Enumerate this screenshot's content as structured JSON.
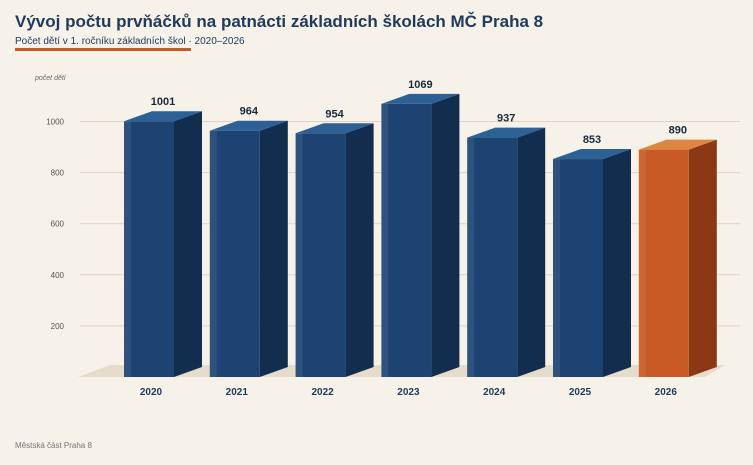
{
  "title": "Vývoj počtu prvňáčků na patnácti základních školách MČ Praha 8",
  "subtitle": "Počet dětí v 1. ročníku základních škol · 2020–2026",
  "footer": "Městská část Praha 8",
  "colors": {
    "bar_front": "#1d4373",
    "bar_top": "#2d6196",
    "bar_side": "#122d4d",
    "highlight_front": "#c85a26",
    "highlight_top": "#de8542",
    "highlight_side": "#8b3814",
    "grid": "#ddd4c6",
    "floor": "#e6dccc"
  },
  "chart_data": {
    "type": "bar",
    "style": "3d",
    "categories": [
      "2020",
      "2021",
      "2022",
      "2023",
      "2024",
      "2025",
      "2026"
    ],
    "values": [
      1001,
      964,
      954,
      1069,
      937,
      853,
      890
    ],
    "highlight_index": 6,
    "ylabel": "počet dětí",
    "yticks": [
      200,
      400,
      600,
      800,
      1000
    ],
    "ylim": [
      0,
      1100
    ],
    "grid": true
  }
}
